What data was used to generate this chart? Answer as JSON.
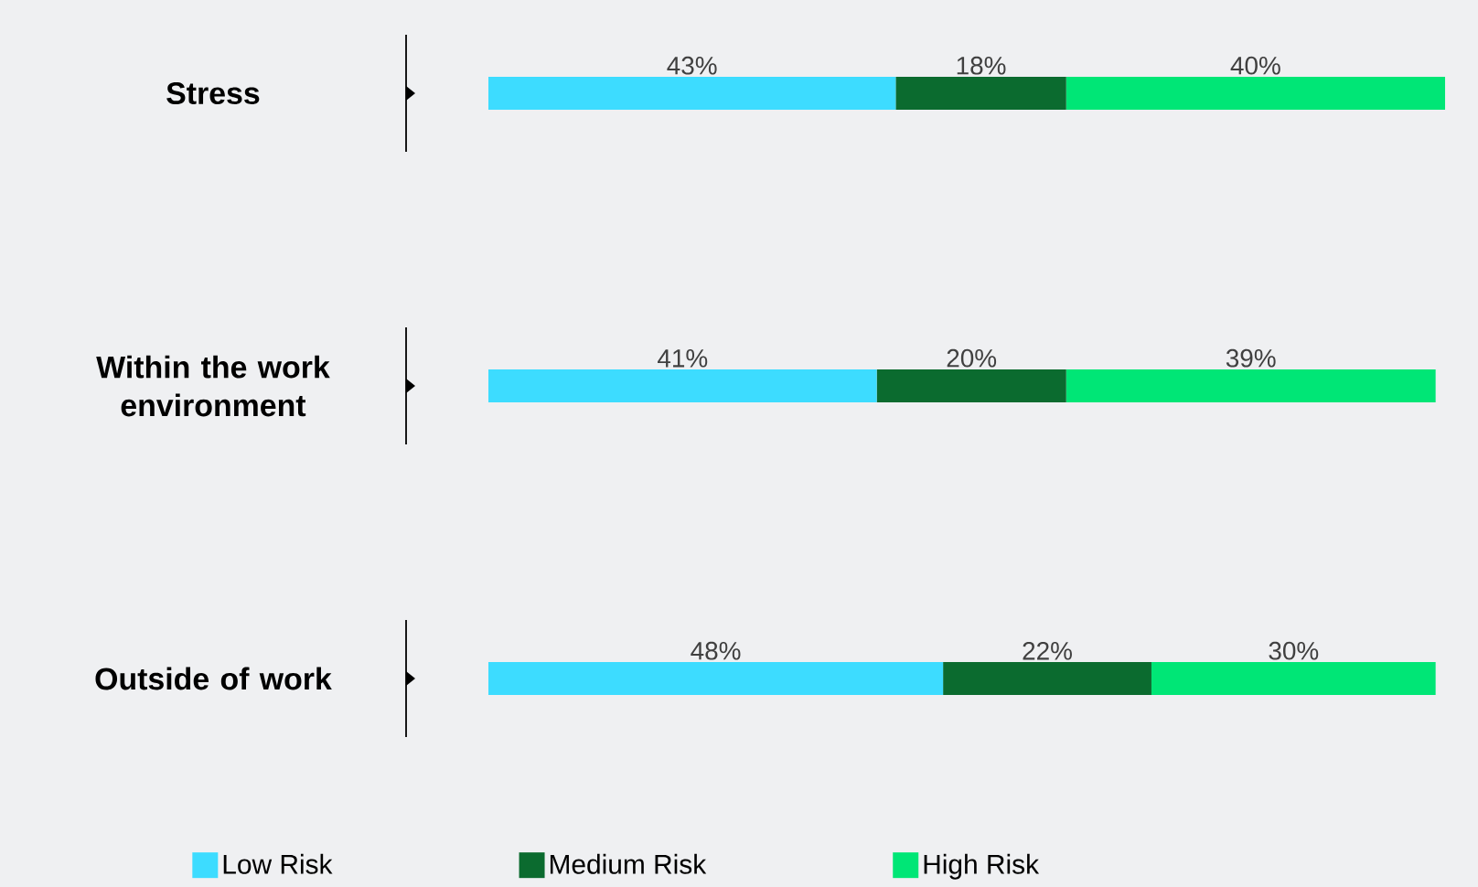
{
  "chart_data": {
    "type": "bar",
    "orientation": "horizontal",
    "stacked": true,
    "tick_labels": "y",
    "legend": "bottom",
    "categories": [
      "Stress",
      "Within the work environment",
      "Outside of work"
    ],
    "series": [
      {
        "name": "Low Risk",
        "color": "#3ddcff",
        "values": [
          43,
          41,
          48
        ],
        "value_labels": [
          "43%",
          "41%",
          "48%"
        ]
      },
      {
        "name": "Medium Risk",
        "color": "#0b6b2f",
        "values": [
          18,
          20,
          22
        ],
        "value_labels": [
          "18%",
          "20%",
          "22%"
        ]
      },
      {
        "name": "High Risk",
        "color": "#00e676",
        "values": [
          40,
          39,
          30
        ],
        "value_labels": [
          "40%",
          "39%",
          "30%"
        ]
      }
    ]
  }
}
